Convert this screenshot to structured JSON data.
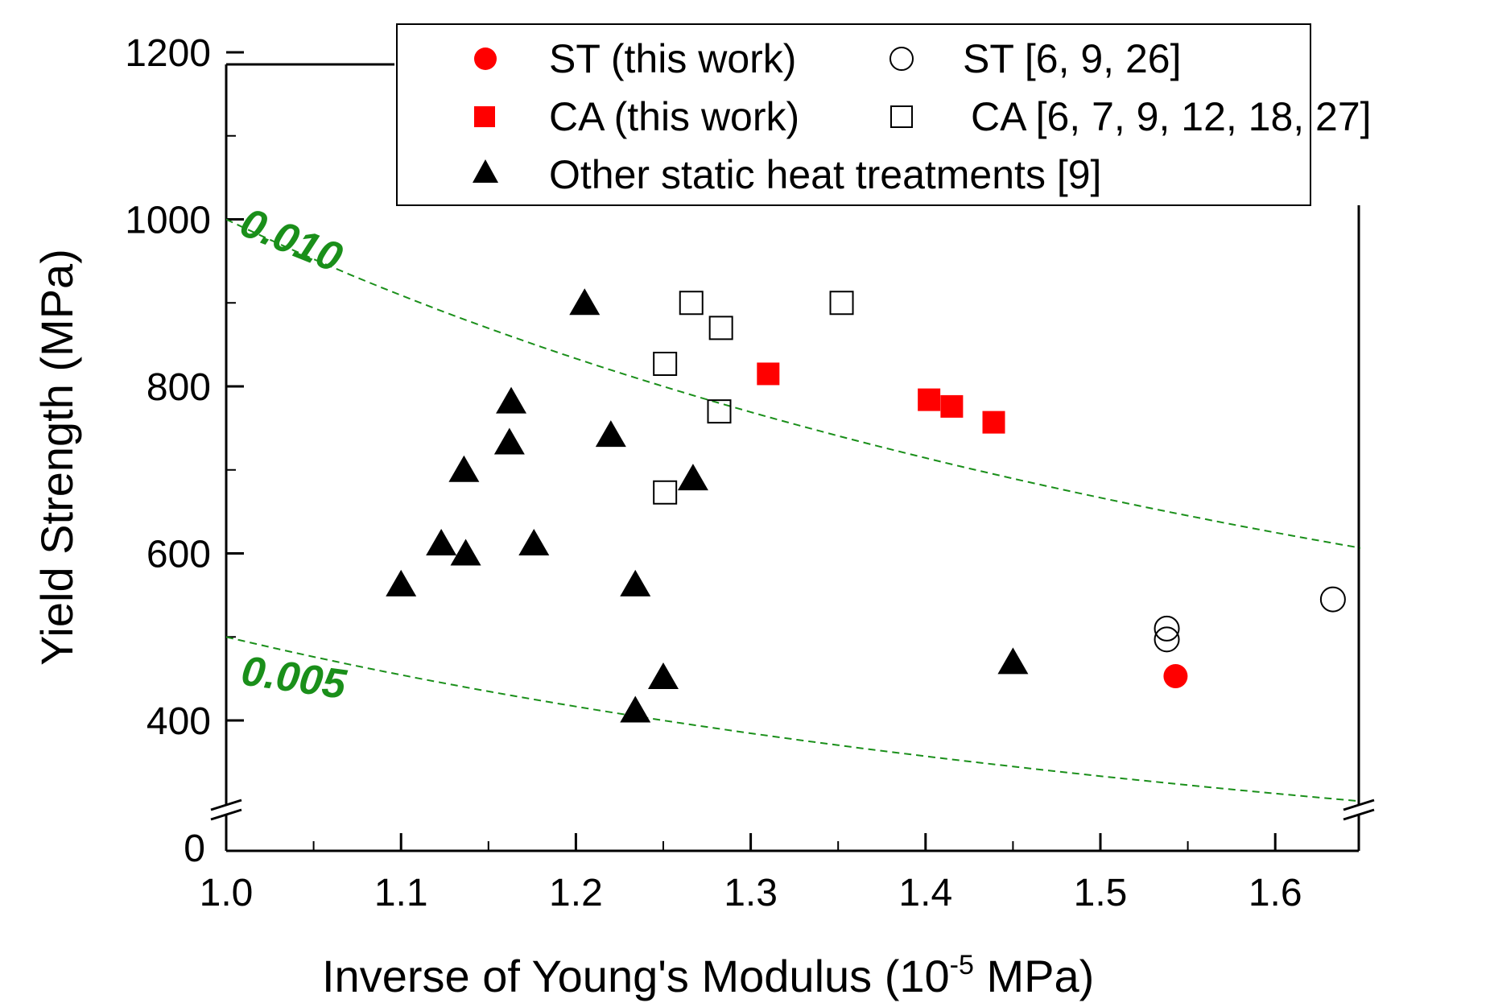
{
  "chart_data": {
    "type": "scatter",
    "xlabel_main": "Inverse of Young's Modulus (10",
    "xlabel_exp": "-5",
    "xlabel_end": " MPa)",
    "ylabel": "Yield Strength (MPa)",
    "xlim": [
      1.0,
      1.65
    ],
    "ylim": [
      300,
      1200
    ],
    "y_break": {
      "zero_label": "0"
    },
    "x_ticks": [
      "1.0",
      "1.1",
      "1.2",
      "1.3",
      "1.4",
      "1.5",
      "1.6"
    ],
    "x_tick_values": [
      1.0,
      1.1,
      1.2,
      1.3,
      1.4,
      1.5,
      1.6
    ],
    "y_ticks": [
      "400",
      "600",
      "800",
      "1000",
      "1200"
    ],
    "y_tick_values": [
      400,
      600,
      800,
      1000,
      1200
    ],
    "series": [
      {
        "name": "ST (this work)",
        "marker": "circle-filled",
        "color": "#ff0000",
        "points": [
          [
            1.543,
            453
          ]
        ]
      },
      {
        "name": "ST [6, 9, 26]",
        "marker": "circle-open",
        "color": "#000000",
        "points": [
          [
            1.538,
            510
          ],
          [
            1.538,
            497
          ],
          [
            1.633,
            545
          ]
        ]
      },
      {
        "name": "CA (this work)",
        "marker": "square-filled",
        "color": "#ff0000",
        "points": [
          [
            1.31,
            815
          ],
          [
            1.402,
            784
          ],
          [
            1.415,
            776
          ],
          [
            1.439,
            757
          ]
        ]
      },
      {
        "name": "CA [6, 7, 9, 12, 18, 27]",
        "marker": "square-open",
        "color": "#000000",
        "points": [
          [
            1.266,
            900
          ],
          [
            1.283,
            870
          ],
          [
            1.251,
            827
          ],
          [
            1.282,
            770
          ],
          [
            1.251,
            673
          ],
          [
            1.352,
            900
          ]
        ]
      },
      {
        "name": "Other static heat treatments [9]",
        "marker": "triangle-filled",
        "color": "#000000",
        "points": [
          [
            1.205,
            900
          ],
          [
            1.163,
            782
          ],
          [
            1.162,
            733
          ],
          [
            1.22,
            742
          ],
          [
            1.136,
            700
          ],
          [
            1.267,
            690
          ],
          [
            1.123,
            612
          ],
          [
            1.137,
            600
          ],
          [
            1.176,
            612
          ],
          [
            1.1,
            563
          ],
          [
            1.234,
            563
          ],
          [
            1.25,
            452
          ],
          [
            1.234,
            412
          ],
          [
            1.45,
            470
          ]
        ]
      }
    ],
    "curves": [
      {
        "label": "0.010",
        "color": "#1a8f1a",
        "constant": 0.01
      },
      {
        "label": "0.005",
        "color": "#1a8f1a",
        "constant": 0.005
      }
    ],
    "legend_position": "top-right"
  }
}
